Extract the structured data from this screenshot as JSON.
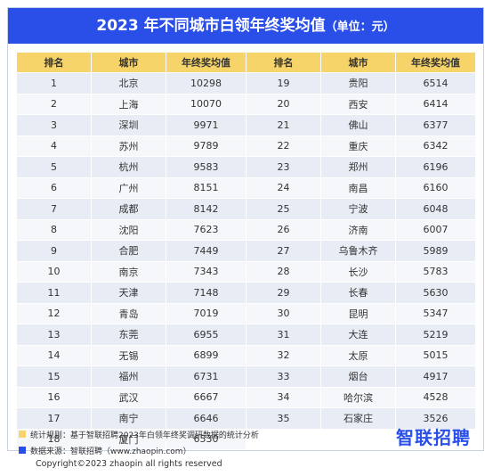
{
  "title": {
    "main": "2023 年不同城市白领年终奖均值",
    "unit": "（单位：元）"
  },
  "headers": [
    "排名",
    "城市",
    "年终奖均值",
    "排名",
    "城市",
    "年终奖均值"
  ],
  "rows": [
    {
      "rank": "1",
      "city": "北京",
      "value": "10298"
    },
    {
      "rank": "2",
      "city": "上海",
      "value": "10070"
    },
    {
      "rank": "3",
      "city": "深圳",
      "value": "9971"
    },
    {
      "rank": "4",
      "city": "苏州",
      "value": "9789"
    },
    {
      "rank": "5",
      "city": "杭州",
      "value": "9583"
    },
    {
      "rank": "6",
      "city": "广州",
      "value": "8151"
    },
    {
      "rank": "7",
      "city": "成都",
      "value": "8142"
    },
    {
      "rank": "8",
      "city": "沈阳",
      "value": "7623"
    },
    {
      "rank": "9",
      "city": "合肥",
      "value": "7449"
    },
    {
      "rank": "10",
      "city": "南京",
      "value": "7343"
    },
    {
      "rank": "11",
      "city": "天津",
      "value": "7148"
    },
    {
      "rank": "12",
      "city": "青岛",
      "value": "7019"
    },
    {
      "rank": "13",
      "city": "东莞",
      "value": "6955"
    },
    {
      "rank": "14",
      "city": "无锡",
      "value": "6899"
    },
    {
      "rank": "15",
      "city": "福州",
      "value": "6731"
    },
    {
      "rank": "16",
      "city": "武汉",
      "value": "6667"
    },
    {
      "rank": "17",
      "city": "南宁",
      "value": "6646"
    },
    {
      "rank": "18",
      "city": "厦门",
      "value": "6530"
    },
    {
      "rank": "19",
      "city": "贵阳",
      "value": "6514"
    },
    {
      "rank": "20",
      "city": "西安",
      "value": "6414"
    },
    {
      "rank": "21",
      "city": "佛山",
      "value": "6377"
    },
    {
      "rank": "22",
      "city": "重庆",
      "value": "6342"
    },
    {
      "rank": "23",
      "city": "郑州",
      "value": "6196"
    },
    {
      "rank": "24",
      "city": "南昌",
      "value": "6160"
    },
    {
      "rank": "25",
      "city": "宁波",
      "value": "6048"
    },
    {
      "rank": "26",
      "city": "济南",
      "value": "6007"
    },
    {
      "rank": "27",
      "city": "乌鲁木齐",
      "value": "5989"
    },
    {
      "rank": "28",
      "city": "长沙",
      "value": "5783"
    },
    {
      "rank": "29",
      "city": "长春",
      "value": "5630"
    },
    {
      "rank": "30",
      "city": "昆明",
      "value": "5347"
    },
    {
      "rank": "31",
      "city": "大连",
      "value": "5219"
    },
    {
      "rank": "32",
      "city": "太原",
      "value": "5015"
    },
    {
      "rank": "33",
      "city": "烟台",
      "value": "4917"
    },
    {
      "rank": "34",
      "city": "哈尔滨",
      "value": "4528"
    },
    {
      "rank": "35",
      "city": "石家庄",
      "value": "3526"
    }
  ],
  "notes": [
    {
      "text": "统计规则：基于智联招聘2023年白领年终奖调研数据的统计分析",
      "color": "#f7d46a"
    },
    {
      "text": "数据来源：智联招聘（www.zhaopin.com）",
      "color": "#2a4ee8"
    }
  ],
  "logo": "智联招聘",
  "copyright": "Copyright©2023 zhaopin all rights reserved"
}
